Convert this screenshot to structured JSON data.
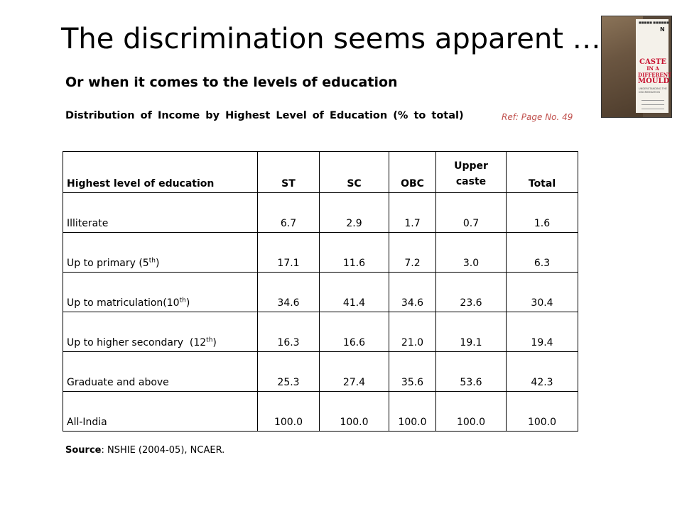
{
  "title": "The discrimination seems apparent …",
  "subtitle": "Or when it comes to the levels of education",
  "caption": "Distribution of Income by Highest Level of Education (% to total)",
  "ref": "Ref: Page No. 49",
  "book": {
    "title_lines": [
      "CASTE",
      "IN A",
      "DIFFERENT",
      "MOULD"
    ],
    "subtitle": "UNDERSTANDING THE DISCRIMINATION"
  },
  "table": {
    "headers": [
      "Highest level of education",
      "ST",
      "SC",
      "OBC",
      "Upper caste",
      "Total"
    ],
    "rows": [
      {
        "label": "Illiterate",
        "sup": "",
        "label_after": "",
        "values": [
          "6.7",
          "2.9",
          "1.7",
          "0.7",
          "1.6"
        ]
      },
      {
        "label": "Up to primary (5",
        "sup": "th",
        "label_after": ")",
        "values": [
          "17.1",
          "11.6",
          "7.2",
          "3.0",
          "6.3"
        ]
      },
      {
        "label": "Up to matriculation(10",
        "sup": "th",
        "label_after": ")",
        "values": [
          "34.6",
          "41.4",
          "34.6",
          "23.6",
          "30.4"
        ]
      },
      {
        "label": "Up to higher secondary  (12",
        "sup": "th",
        "label_after": ")",
        "values": [
          "16.3",
          "16.6",
          "21.0",
          "19.1",
          "19.4"
        ]
      },
      {
        "label": "Graduate and above",
        "sup": "",
        "label_after": "",
        "values": [
          "25.3",
          "27.4",
          "35.6",
          "53.6",
          "42.3"
        ]
      },
      {
        "label": "All-India",
        "sup": "",
        "label_after": "",
        "values": [
          "100.0",
          "100.0",
          "100.0",
          "100.0",
          "100.0"
        ]
      }
    ]
  },
  "source": {
    "label": "Source",
    "text": ": NSHIE (2004-05), NCAER."
  },
  "colors": {
    "ref": "#c0504d",
    "book_title": "#c8102e"
  }
}
